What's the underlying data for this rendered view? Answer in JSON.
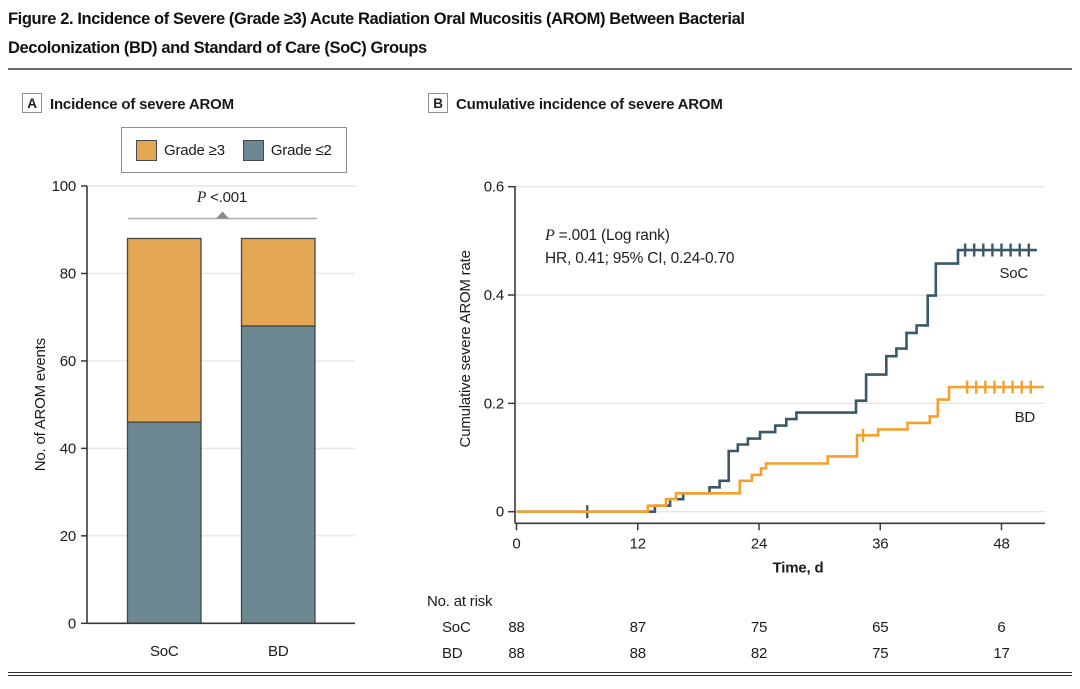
{
  "figure_title": {
    "line1": "Figure 2. Incidence of Severe (Grade ≥3) Acute Radiation Oral Mucositis (AROM) Between Bacterial",
    "line2": "Decolonization (BD) and Standard of Care (SoC) Groups"
  },
  "panels": {
    "a": {
      "tag": "A",
      "title": "Incidence of severe AROM",
      "p_italic": "P",
      "p_rest": " <.001"
    },
    "b": {
      "tag": "B",
      "title": "Cumulative incidence of severe AROM",
      "ann_p_italic": "P",
      "ann_p_rest": " =.001 (Log rank)",
      "ann_hr": "HR, 0.41; 95% CI, 0.24-0.70"
    }
  },
  "colors": {
    "grade_ge3_fill": "#E4A753",
    "grade_le2_fill": "#6B8893",
    "bar_stroke": "#474747",
    "soc_curve": "#3A586A",
    "bd_curve": "#F2A12E",
    "grid": "#E6E6E6",
    "axis": "#3a3a3a",
    "bracket_line": "#ADADAD",
    "bracket_arrow": "#8a8a8a"
  },
  "chart_data": [
    {
      "id": "panel_a_bars",
      "type": "bar",
      "stacked": true,
      "title": "Incidence of severe AROM",
      "categories": [
        "SoC",
        "BD"
      ],
      "series": [
        {
          "name": "Grade ≤2",
          "color": "#6B8893",
          "values": [
            46,
            68
          ]
        },
        {
          "name": "Grade ≥3",
          "color": "#E4A753",
          "values": [
            42,
            20
          ]
        }
      ],
      "totals": [
        88,
        88
      ],
      "legend": [
        {
          "label": "Grade ≥3",
          "color": "#E4A753"
        },
        {
          "label": "Grade ≤2",
          "color": "#6B8893"
        }
      ],
      "annotation": "P <.001",
      "xlabel": "",
      "ylabel": "No. of AROM events",
      "ylim": [
        0,
        100
      ],
      "yticks": [
        0,
        20,
        40,
        60,
        80,
        100
      ],
      "grid": true,
      "legend_position": "top"
    },
    {
      "id": "panel_b_km",
      "type": "line",
      "subtype": "kaplan-meier-step",
      "title": "Cumulative incidence of severe AROM",
      "xlabel": "Time, d",
      "ylabel": "Cumulative severe AROM rate",
      "xlim": [
        0,
        52
      ],
      "ylim": [
        0,
        0.6
      ],
      "xticks": [
        0,
        12,
        24,
        36,
        48
      ],
      "yticks": [
        0,
        0.2,
        0.4,
        0.6
      ],
      "grid": true,
      "annotations": [
        "P =.001 (Log rank)",
        "HR, 0.41; 95% CI, 0.24-0.70"
      ],
      "series": [
        {
          "name": "SoC",
          "color": "#3A586A",
          "steps": [
            [
              0,
              0
            ],
            [
              13.7,
              0.011
            ],
            [
              15.2,
              0.023
            ],
            [
              16.5,
              0.034
            ],
            [
              19.1,
              0.045
            ],
            [
              20.1,
              0.057
            ],
            [
              21.0,
              0.112
            ],
            [
              21.9,
              0.124
            ],
            [
              22.9,
              0.135
            ],
            [
              24.1,
              0.147
            ],
            [
              25.6,
              0.159
            ],
            [
              26.7,
              0.171
            ],
            [
              27.7,
              0.183
            ],
            [
              33.6,
              0.205
            ],
            [
              34.6,
              0.253
            ],
            [
              36.6,
              0.287
            ],
            [
              37.6,
              0.301
            ],
            [
              38.6,
              0.33
            ],
            [
              39.6,
              0.344
            ],
            [
              40.7,
              0.399
            ],
            [
              41.5,
              0.458
            ],
            [
              43.7,
              0.483
            ]
          ],
          "end_day": 51.5,
          "censors": [
            [
              7,
              0
            ],
            [
              44.4,
              0.483
            ],
            [
              45.3,
              0.483
            ],
            [
              46.2,
              0.483
            ],
            [
              47.1,
              0.483
            ],
            [
              48.0,
              0.483
            ],
            [
              48.9,
              0.483
            ],
            [
              49.8,
              0.483
            ],
            [
              50.7,
              0.483
            ]
          ],
          "label_pos": [
            47.8,
            0.431
          ]
        },
        {
          "name": "BD",
          "color": "#F2A12E",
          "steps": [
            [
              0,
              0
            ],
            [
              13.0,
              0.011
            ],
            [
              14.8,
              0.023
            ],
            [
              15.8,
              0.034
            ],
            [
              22.1,
              0.057
            ],
            [
              23.3,
              0.068
            ],
            [
              24.2,
              0.08
            ],
            [
              24.7,
              0.089
            ],
            [
              30.8,
              0.102
            ],
            [
              33.7,
              0.141
            ],
            [
              35.8,
              0.152
            ],
            [
              38.7,
              0.164
            ],
            [
              40.9,
              0.176
            ],
            [
              41.7,
              0.207
            ],
            [
              42.8,
              0.23
            ]
          ],
          "end_day": 52.2,
          "censors": [
            [
              34.3,
              0.141
            ],
            [
              44.6,
              0.23
            ],
            [
              45.5,
              0.23
            ],
            [
              46.4,
              0.23
            ],
            [
              47.3,
              0.23
            ],
            [
              48.2,
              0.23
            ],
            [
              49.1,
              0.23
            ],
            [
              50.0,
              0.23
            ],
            [
              50.9,
              0.23
            ]
          ],
          "label_pos": [
            49.3,
            0.166
          ]
        }
      ],
      "at_risk": {
        "label": "No. at risk",
        "times": [
          0,
          12,
          24,
          36,
          48
        ],
        "rows": [
          {
            "name": "SoC",
            "values": [
              88,
              87,
              75,
              65,
              6
            ]
          },
          {
            "name": "BD",
            "values": [
              88,
              88,
              82,
              75,
              17
            ]
          }
        ]
      }
    }
  ]
}
